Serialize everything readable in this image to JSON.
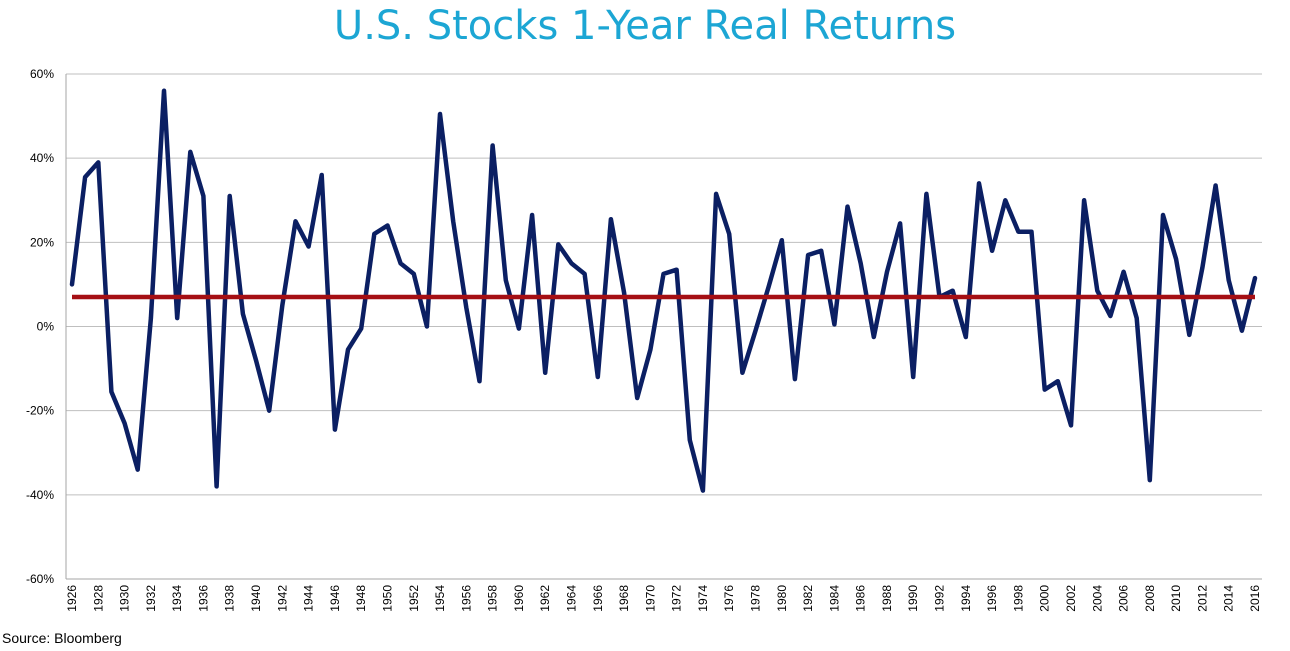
{
  "chart_data": {
    "type": "line",
    "title": "U.S. Stocks 1-Year Real Returns",
    "xlabel": "",
    "ylabel": "",
    "ylim": [
      -60,
      60
    ],
    "y_ticks": [
      "60%",
      "40%",
      "20%",
      "0%",
      "-20%",
      "-40%",
      "-60%"
    ],
    "y_tick_values": [
      60,
      40,
      20,
      0,
      -20,
      -40,
      -60
    ],
    "x_tick_labels": [
      "1926",
      "1928",
      "1930",
      "1932",
      "1934",
      "1936",
      "1938",
      "1940",
      "1942",
      "1944",
      "1946",
      "1948",
      "1950",
      "1952",
      "1954",
      "1956",
      "1958",
      "1960",
      "1962",
      "1964",
      "1966",
      "1968",
      "1970",
      "1972",
      "1974",
      "1976",
      "1978",
      "1980",
      "1982",
      "1984",
      "1986",
      "1988",
      "1990",
      "1992",
      "1994",
      "1996",
      "1998",
      "2000",
      "2002",
      "2004",
      "2006",
      "2008",
      "2010",
      "2012",
      "2014",
      "2016"
    ],
    "grid": "horizontal",
    "colors": {
      "series": "#0b1f63",
      "average": "#a50f14",
      "title": "#1ca6d4",
      "grid": "#bfbfbf"
    },
    "series": [
      {
        "x": [
          1926,
          1927,
          1928,
          1929,
          1930,
          1931,
          1932,
          1933,
          1934,
          1935,
          1936,
          1937,
          1938,
          1939,
          1940,
          1941,
          1942,
          1943,
          1944,
          1945,
          1946,
          1947,
          1948,
          1949,
          1950,
          1951,
          1952,
          1953,
          1954,
          1955,
          1956,
          1957,
          1958,
          1959,
          1960,
          1961,
          1962,
          1963,
          1964,
          1965,
          1966,
          1967,
          1968,
          1969,
          1970,
          1971,
          1972,
          1973,
          1974,
          1975,
          1976,
          1977,
          1978,
          1979,
          1980,
          1981,
          1982,
          1983,
          1984,
          1985,
          1986,
          1987,
          1988,
          1989,
          1990,
          1991,
          1992,
          1993,
          1994,
          1995,
          1996,
          1997,
          1998,
          1999,
          2000,
          2001,
          2002,
          2003,
          2004,
          2005,
          2006,
          2007,
          2008,
          2009,
          2010,
          2011,
          2012,
          2013,
          2014,
          2015,
          2016
        ],
        "values": [
          10,
          35.5,
          39,
          -15.5,
          -23,
          -34,
          2,
          56,
          2,
          41.5,
          31,
          -38,
          31,
          3,
          -8,
          -20,
          5,
          25,
          19,
          36,
          -24.5,
          -5.5,
          -0.5,
          22,
          24,
          15,
          12.5,
          0,
          50.5,
          25,
          4.5,
          -13,
          43,
          11,
          -0.5,
          26.5,
          -11,
          19.5,
          15,
          12.5,
          -12,
          25.5,
          8,
          -17,
          -5.5,
          12.5,
          13.5,
          -27,
          -39,
          31.5,
          22,
          -11,
          -1,
          9.5,
          20.5,
          -12.5,
          17,
          18,
          0.5,
          28.5,
          15,
          -2.5,
          13,
          24.5,
          -12,
          31.5,
          7,
          8.5,
          -2.5,
          34,
          18,
          30,
          22.5,
          22.5,
          -15,
          -13,
          -23.5,
          30,
          8.5,
          2.5,
          13,
          2,
          -36.5,
          26.5,
          16,
          -2,
          14,
          33.5,
          11,
          -1,
          11.5
        ]
      },
      {
        "values": [
          7
        ]
      }
    ]
  },
  "source_note": "Source: Bloomberg"
}
